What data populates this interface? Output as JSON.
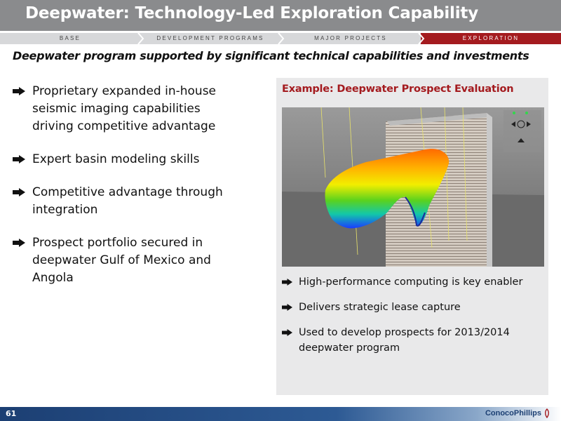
{
  "slide": {
    "title": "Deepwater: Technology-Led Exploration Capability",
    "subtitle": "Deepwater program supported by significant technical capabilities and investments",
    "page_number": "61"
  },
  "nav": {
    "items": [
      {
        "label": "BASE",
        "active": false
      },
      {
        "label": "DEVELOPMENT PROGRAMS",
        "active": false
      },
      {
        "label": "MAJOR PROJECTS",
        "active": false
      },
      {
        "label": "EXPLORATION",
        "active": true
      }
    ]
  },
  "left_bullets": [
    "Proprietary expanded in-house seismic imaging capabilities driving competitive advantage",
    "Expert basin modeling skills",
    "Competitive advantage through integration",
    "Prospect portfolio secured in deepwater Gulf of Mexico and Angola"
  ],
  "panel": {
    "title": "Example: Deepwater Prospect Evaluation",
    "image_icon": "seismic-3d-visualization",
    "bullets": [
      "High-performance computing is key enabler",
      "Delivers strategic lease capture",
      "Used to develop prospects for 2013/2014 deepwater program"
    ]
  },
  "footer": {
    "logo_text": "ConocoPhillips"
  },
  "colors": {
    "title_bar": "#8a8b8d",
    "accent_red": "#a41b1f",
    "footer_blue": "#1c3f73",
    "panel_bg": "#e9e9ea"
  }
}
